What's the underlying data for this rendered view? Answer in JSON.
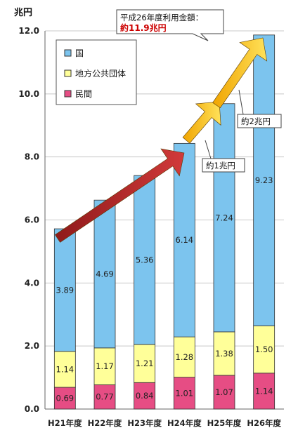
{
  "chart_data": {
    "type": "bar",
    "stacked": true,
    "unit_label": "兆円",
    "categories": [
      "H21年度",
      "H22年度",
      "H23年度",
      "H24年度",
      "H25年度",
      "H26年度"
    ],
    "series": [
      {
        "name": "民間",
        "color": "#e64d84",
        "values": [
          0.69,
          0.77,
          0.84,
          1.01,
          1.07,
          1.14
        ]
      },
      {
        "name": "地方公共団体",
        "color": "#ffff99",
        "values": [
          1.14,
          1.17,
          1.21,
          1.28,
          1.38,
          1.5
        ]
      },
      {
        "name": "国",
        "color": "#7cc4ee",
        "values": [
          3.89,
          4.69,
          5.36,
          6.14,
          7.24,
          9.23
        ]
      }
    ],
    "value_labels": {
      "民間": [
        "0.69",
        "0.77",
        "0.84",
        "1.01",
        "1.07",
        "1.14"
      ],
      "地方公共団体": [
        "1.14",
        "1.17",
        "1.21",
        "1.28",
        "1.38",
        "1.50"
      ],
      "国": [
        "3.89",
        "4.69",
        "5.36",
        "6.14",
        "7.24",
        "9.23"
      ]
    },
    "ylim": [
      0,
      12
    ],
    "yticks": [
      0,
      2,
      4,
      6,
      8,
      10,
      12
    ],
    "ytick_labels": [
      "0.0",
      "2.0",
      "4.0",
      "6.0",
      "8.0",
      "10.0",
      "12.0"
    ],
    "grid": true,
    "legend_position": "top-left",
    "legend_order": [
      "国",
      "地方公共団体",
      "民間"
    ],
    "annotations": {
      "top_callout_line1": "平成26年度利用金額：",
      "top_callout_line2": "約11.9兆円",
      "callout_h24": "約1兆円",
      "callout_h25": "約2兆円"
    },
    "colors": {
      "bar_outline": "#333333",
      "red_arrow": "#b22222",
      "orange_arrow": "#f5b800",
      "highlight_text": "#cc0000"
    }
  }
}
